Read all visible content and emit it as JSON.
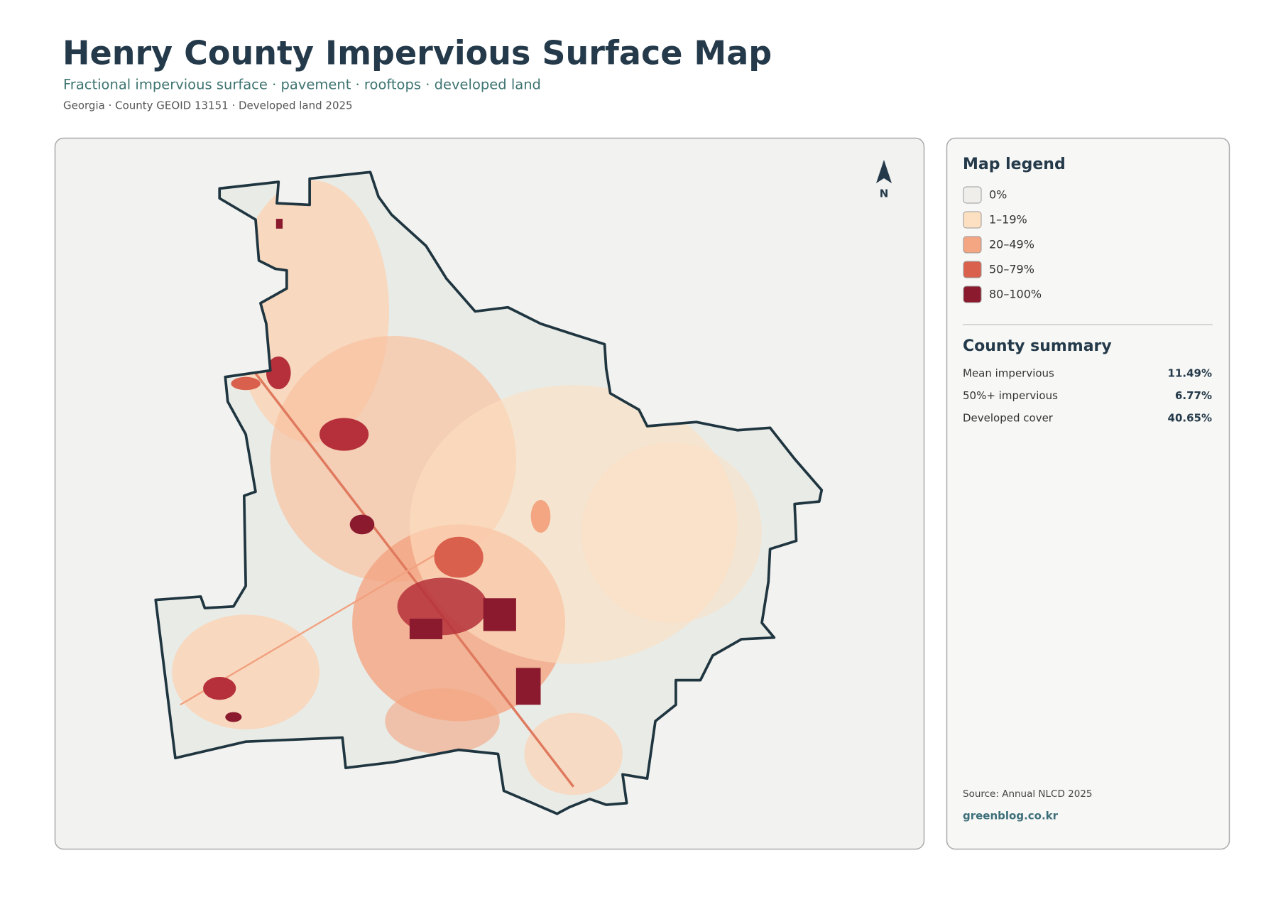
{
  "header": {
    "title": "Henry County Impervious Surface Map",
    "subtitle": "Fractional impervious surface · pavement · rooftops · developed land",
    "meta": "Georgia · County GEOID 13151 · Developed land 2025"
  },
  "map": {
    "north_label": "N"
  },
  "legend": {
    "title": "Map legend",
    "items": [
      {
        "label": "0%",
        "color": "#efeeea"
      },
      {
        "label": "1–19%",
        "color": "#fde0c2"
      },
      {
        "label": "20–49%",
        "color": "#f4a582"
      },
      {
        "label": "50–79%",
        "color": "#d9604c"
      },
      {
        "label": "80–100%",
        "color": "#8b1a2e"
      }
    ]
  },
  "summary": {
    "title": "County summary",
    "rows": [
      {
        "label": "Mean impervious",
        "value": "11.49%"
      },
      {
        "label": "50%+ impervious",
        "value": "6.77%"
      },
      {
        "label": "Developed cover",
        "value": "40.65%"
      }
    ]
  },
  "footer": {
    "source": "Source: Annual NLCD 2025",
    "site": "greenblog.co.kr"
  }
}
